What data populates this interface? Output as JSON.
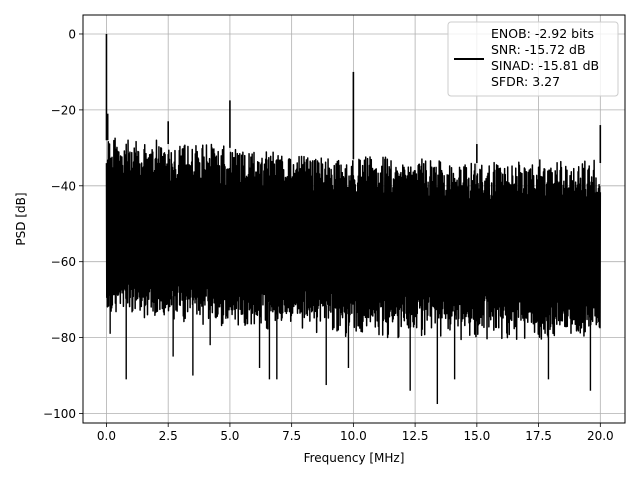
{
  "chart_data": {
    "type": "line",
    "xlabel": "Frequency [MHz]",
    "ylabel": "PSD [dB]",
    "xlim": [
      -0.95,
      21.0
    ],
    "ylim": [
      -102.5,
      5.0
    ],
    "xticks": [
      0.0,
      2.5,
      5.0,
      7.5,
      10.0,
      12.5,
      15.0,
      17.5,
      20.0
    ],
    "xtick_labels": [
      "0.0",
      "2.5",
      "5.0",
      "7.5",
      "10.0",
      "12.5",
      "15.0",
      "17.5",
      "20.0"
    ],
    "yticks": [
      0,
      -20,
      -40,
      -60,
      -80,
      -100
    ],
    "ytick_labels": [
      "0",
      "−20",
      "−40",
      "−60",
      "−80",
      "−100"
    ],
    "grid": true,
    "legend": {
      "placement": "top-right",
      "entries": [
        "ENOB: -2.92 bits",
        "SNR: -15.72 dB",
        "SINAD: -15.81 dB",
        "SFDR: 3.27"
      ]
    },
    "series": [
      {
        "color": "#000000",
        "noise_floor": {
          "x_range": [
            0.0,
            20.0
          ],
          "upper_envelope": [
            [
              0.0,
              -28
            ],
            [
              2.5,
              -29
            ],
            [
              5.0,
              -30
            ],
            [
              7.5,
              -32
            ],
            [
              10.0,
              -33
            ],
            [
              12.5,
              -33
            ],
            [
              15.0,
              -34
            ],
            [
              17.5,
              -34
            ],
            [
              20.0,
              -34
            ]
          ],
          "lower_envelope": [
            [
              0.0,
              -68
            ],
            [
              5.0,
              -70
            ],
            [
              10.0,
              -72
            ],
            [
              15.0,
              -73
            ],
            [
              20.0,
              -74
            ]
          ]
        },
        "peaks": [
          {
            "x": 0.0,
            "y": 0.0
          },
          {
            "x": 0.05,
            "y": -21.0
          },
          {
            "x": 2.5,
            "y": -23.0
          },
          {
            "x": 5.0,
            "y": -17.5
          },
          {
            "x": 10.0,
            "y": -10.0
          },
          {
            "x": 15.0,
            "y": -29.0
          },
          {
            "x": 20.0,
            "y": -24.0
          }
        ],
        "dips": [
          {
            "x": 0.15,
            "y": -79.0
          },
          {
            "x": 0.8,
            "y": -91.0
          },
          {
            "x": 2.7,
            "y": -85.0
          },
          {
            "x": 3.5,
            "y": -90.0
          },
          {
            "x": 4.2,
            "y": -82.0
          },
          {
            "x": 6.2,
            "y": -88.0
          },
          {
            "x": 6.6,
            "y": -91.0
          },
          {
            "x": 6.9,
            "y": -91.0
          },
          {
            "x": 8.9,
            "y": -92.5
          },
          {
            "x": 9.8,
            "y": -88.0
          },
          {
            "x": 12.3,
            "y": -94.0
          },
          {
            "x": 13.4,
            "y": -97.5
          },
          {
            "x": 14.1,
            "y": -91.0
          },
          {
            "x": 17.9,
            "y": -91.0
          },
          {
            "x": 19.6,
            "y": -94.0
          }
        ]
      }
    ]
  }
}
